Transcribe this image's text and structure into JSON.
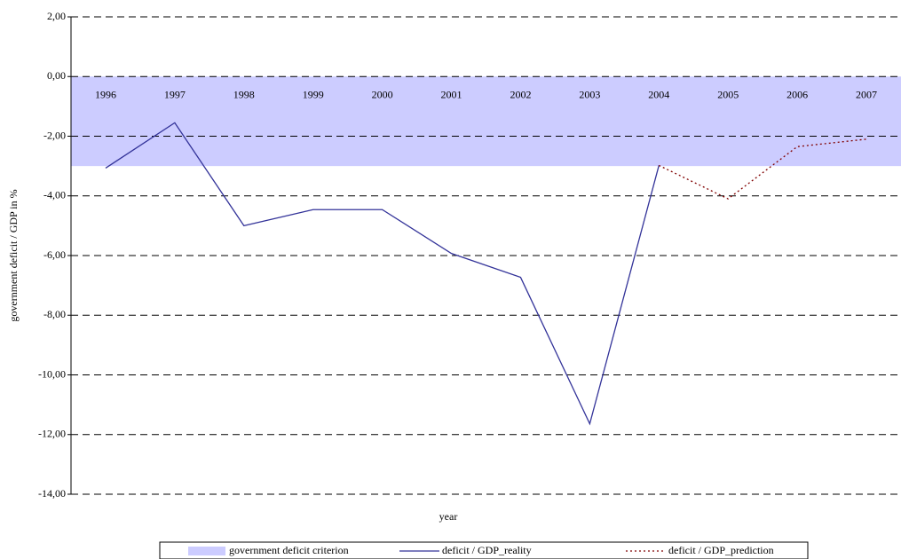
{
  "chart_data": {
    "type": "line",
    "xlabel": "year",
    "ylabel": "government deficit / GDP in %",
    "categories": [
      "1996",
      "1997",
      "1998",
      "1999",
      "2000",
      "2001",
      "2002",
      "2003",
      "2004",
      "2005",
      "2006",
      "2007"
    ],
    "bands": [
      {
        "name": "government deficit criterion",
        "color": "#ccccff",
        "from": 0,
        "to": -3
      }
    ],
    "series": [
      {
        "name": "deficit / GDP_reality",
        "color": "#333399",
        "dash": false,
        "values": [
          -3.07,
          -1.55,
          -5.0,
          -4.46,
          -4.46,
          -5.93,
          -6.73,
          -11.64,
          -2.98,
          null,
          null,
          null
        ]
      },
      {
        "name": "deficit / GDP_prediction",
        "color": "#800000",
        "dash": true,
        "values": [
          null,
          null,
          null,
          null,
          null,
          null,
          null,
          null,
          -2.98,
          -4.1,
          -2.35,
          -2.1
        ]
      }
    ],
    "ylim": [
      -14,
      2
    ],
    "yticks": [
      {
        "value": 2,
        "label": "2,00"
      },
      {
        "value": 0,
        "label": "0,00"
      },
      {
        "value": -2,
        "label": "-2,00"
      },
      {
        "value": -4,
        "label": "-4,00"
      },
      {
        "value": -6,
        "label": "-6,00"
      },
      {
        "value": -8,
        "label": "-8,00"
      },
      {
        "value": -10,
        "label": "-10,00"
      },
      {
        "value": -12,
        "label": "-12,00"
      },
      {
        "value": -14,
        "label": "-14,00"
      }
    ],
    "grid": true
  }
}
